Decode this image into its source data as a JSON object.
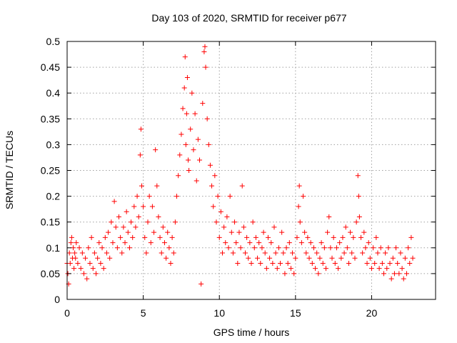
{
  "chart_data": {
    "type": "scatter",
    "title": "Day 103 of 2020, SRMTID for receiver p677",
    "xlabel": "GPS time / hours",
    "ylabel": "SRMTID / TECUs",
    "xlim": [
      0,
      24.2
    ],
    "ylim": [
      0,
      0.5
    ],
    "x_ticks": [
      0,
      5,
      10,
      15,
      20
    ],
    "x_tick_labels": [
      "0",
      "5",
      "10",
      "15",
      "20"
    ],
    "y_ticks": [
      0,
      0.05,
      0.1,
      0.15,
      0.2,
      0.25,
      0.3,
      0.35,
      0.4,
      0.45,
      0.5
    ],
    "y_tick_labels": [
      "0",
      "0.05",
      "0.1",
      "0.15",
      "0.2",
      "0.25",
      "0.3",
      "0.35",
      "0.4",
      "0.45",
      "0.5"
    ],
    "grid": true,
    "marker": "+",
    "color": "#ff0000",
    "series": [
      {
        "name": "SRMTID",
        "points": [
          [
            0.0,
            0.07
          ],
          [
            0.05,
            0.05
          ],
          [
            0.1,
            0.03
          ],
          [
            0.15,
            0.09
          ],
          [
            0.2,
            0.07
          ],
          [
            0.25,
            0.11
          ],
          [
            0.3,
            0.12
          ],
          [
            0.35,
            0.08
          ],
          [
            0.4,
            0.1
          ],
          [
            0.45,
            0.06
          ],
          [
            0.5,
            0.09
          ],
          [
            0.55,
            0.08
          ],
          [
            0.6,
            0.11
          ],
          [
            0.7,
            0.07
          ],
          [
            0.8,
            0.1
          ],
          [
            0.9,
            0.06
          ],
          [
            1.0,
            0.09
          ],
          [
            1.1,
            0.05
          ],
          [
            1.2,
            0.08
          ],
          [
            1.3,
            0.04
          ],
          [
            1.4,
            0.1
          ],
          [
            1.5,
            0.07
          ],
          [
            1.6,
            0.12
          ],
          [
            1.7,
            0.06
          ],
          [
            1.8,
            0.09
          ],
          [
            1.9,
            0.05
          ],
          [
            2.0,
            0.08
          ],
          [
            2.1,
            0.11
          ],
          [
            2.2,
            0.07
          ],
          [
            2.3,
            0.1
          ],
          [
            2.4,
            0.06
          ],
          [
            2.5,
            0.12
          ],
          [
            2.6,
            0.09
          ],
          [
            2.7,
            0.13
          ],
          [
            2.8,
            0.08
          ],
          [
            2.9,
            0.15
          ],
          [
            3.0,
            0.11
          ],
          [
            3.1,
            0.19
          ],
          [
            3.2,
            0.14
          ],
          [
            3.3,
            0.1
          ],
          [
            3.4,
            0.16
          ],
          [
            3.5,
            0.12
          ],
          [
            3.6,
            0.09
          ],
          [
            3.7,
            0.14
          ],
          [
            3.8,
            0.11
          ],
          [
            3.9,
            0.17
          ],
          [
            4.0,
            0.13
          ],
          [
            4.1,
            0.1
          ],
          [
            4.2,
            0.15
          ],
          [
            4.3,
            0.12
          ],
          [
            4.4,
            0.18
          ],
          [
            4.5,
            0.14
          ],
          [
            4.6,
            0.2
          ],
          [
            4.7,
            0.16
          ],
          [
            4.8,
            0.28
          ],
          [
            4.85,
            0.33
          ],
          [
            4.9,
            0.22
          ],
          [
            5.0,
            0.18
          ],
          [
            5.1,
            0.12
          ],
          [
            5.2,
            0.09
          ],
          [
            5.3,
            0.15
          ],
          [
            5.4,
            0.2
          ],
          [
            5.5,
            0.11
          ],
          [
            5.6,
            0.18
          ],
          [
            5.7,
            0.13
          ],
          [
            5.8,
            0.29
          ],
          [
            5.9,
            0.22
          ],
          [
            6.0,
            0.16
          ],
          [
            6.1,
            0.12
          ],
          [
            6.2,
            0.09
          ],
          [
            6.3,
            0.14
          ],
          [
            6.4,
            0.11
          ],
          [
            6.5,
            0.08
          ],
          [
            6.6,
            0.13
          ],
          [
            6.7,
            0.1
          ],
          [
            6.8,
            0.07
          ],
          [
            6.9,
            0.12
          ],
          [
            7.0,
            0.09
          ],
          [
            7.1,
            0.15
          ],
          [
            7.2,
            0.2
          ],
          [
            7.3,
            0.24
          ],
          [
            7.4,
            0.28
          ],
          [
            7.5,
            0.32
          ],
          [
            7.6,
            0.37
          ],
          [
            7.7,
            0.41
          ],
          [
            7.75,
            0.47
          ],
          [
            7.8,
            0.3
          ],
          [
            7.85,
            0.36
          ],
          [
            7.9,
            0.43
          ],
          [
            7.95,
            0.27
          ],
          [
            8.0,
            0.25
          ],
          [
            8.1,
            0.33
          ],
          [
            8.2,
            0.4
          ],
          [
            8.3,
            0.29
          ],
          [
            8.4,
            0.36
          ],
          [
            8.5,
            0.23
          ],
          [
            8.6,
            0.31
          ],
          [
            8.7,
            0.27
          ],
          [
            8.8,
            0.03
          ],
          [
            8.9,
            0.38
          ],
          [
            9.0,
            0.48
          ],
          [
            9.05,
            0.49
          ],
          [
            9.1,
            0.45
          ],
          [
            9.2,
            0.35
          ],
          [
            9.3,
            0.3
          ],
          [
            9.4,
            0.26
          ],
          [
            9.5,
            0.22
          ],
          [
            9.6,
            0.18
          ],
          [
            9.7,
            0.24
          ],
          [
            9.8,
            0.15
          ],
          [
            9.9,
            0.2
          ],
          [
            10.0,
            0.12
          ],
          [
            10.1,
            0.17
          ],
          [
            10.2,
            0.09
          ],
          [
            10.3,
            0.14
          ],
          [
            10.4,
            0.11
          ],
          [
            10.5,
            0.16
          ],
          [
            10.6,
            0.1
          ],
          [
            10.7,
            0.2
          ],
          [
            10.8,
            0.13
          ],
          [
            10.9,
            0.09
          ],
          [
            11.0,
            0.15
          ],
          [
            11.1,
            0.11
          ],
          [
            11.2,
            0.07
          ],
          [
            11.3,
            0.13
          ],
          [
            11.4,
            0.1
          ],
          [
            11.5,
            0.22
          ],
          [
            11.6,
            0.14
          ],
          [
            11.7,
            0.09
          ],
          [
            11.8,
            0.12
          ],
          [
            11.9,
            0.08
          ],
          [
            12.0,
            0.11
          ],
          [
            12.1,
            0.07
          ],
          [
            12.2,
            0.15
          ],
          [
            12.3,
            0.1
          ],
          [
            12.4,
            0.12
          ],
          [
            12.5,
            0.08
          ],
          [
            12.6,
            0.11
          ],
          [
            12.7,
            0.07
          ],
          [
            12.8,
            0.1
          ],
          [
            12.9,
            0.13
          ],
          [
            13.0,
            0.09
          ],
          [
            13.1,
            0.06
          ],
          [
            13.2,
            0.12
          ],
          [
            13.3,
            0.08
          ],
          [
            13.4,
            0.11
          ],
          [
            13.5,
            0.07
          ],
          [
            13.6,
            0.14
          ],
          [
            13.7,
            0.09
          ],
          [
            13.8,
            0.06
          ],
          [
            13.9,
            0.1
          ],
          [
            14.0,
            0.07
          ],
          [
            14.1,
            0.13
          ],
          [
            14.2,
            0.09
          ],
          [
            14.3,
            0.05
          ],
          [
            14.4,
            0.1
          ],
          [
            14.5,
            0.07
          ],
          [
            14.6,
            0.11
          ],
          [
            14.7,
            0.06
          ],
          [
            14.8,
            0.09
          ],
          [
            14.9,
            0.05
          ],
          [
            15.0,
            0.08
          ],
          [
            15.1,
            0.12
          ],
          [
            15.2,
            0.18
          ],
          [
            15.25,
            0.22
          ],
          [
            15.3,
            0.15
          ],
          [
            15.4,
            0.11
          ],
          [
            15.5,
            0.2
          ],
          [
            15.6,
            0.13
          ],
          [
            15.7,
            0.09
          ],
          [
            15.8,
            0.12
          ],
          [
            15.9,
            0.08
          ],
          [
            16.0,
            0.11
          ],
          [
            16.1,
            0.07
          ],
          [
            16.2,
            0.1
          ],
          [
            16.3,
            0.06
          ],
          [
            16.4,
            0.09
          ],
          [
            16.5,
            0.05
          ],
          [
            16.6,
            0.08
          ],
          [
            16.7,
            0.11
          ],
          [
            16.8,
            0.07
          ],
          [
            16.9,
            0.1
          ],
          [
            17.0,
            0.06
          ],
          [
            17.1,
            0.13
          ],
          [
            17.2,
            0.16
          ],
          [
            17.3,
            0.1
          ],
          [
            17.4,
            0.08
          ],
          [
            17.5,
            0.12
          ],
          [
            17.6,
            0.07
          ],
          [
            17.7,
            0.1
          ],
          [
            17.8,
            0.06
          ],
          [
            17.9,
            0.11
          ],
          [
            18.0,
            0.08
          ],
          [
            18.1,
            0.12
          ],
          [
            18.2,
            0.09
          ],
          [
            18.3,
            0.14
          ],
          [
            18.4,
            0.1
          ],
          [
            18.5,
            0.07
          ],
          [
            18.6,
            0.13
          ],
          [
            18.7,
            0.09
          ],
          [
            18.8,
            0.12
          ],
          [
            18.9,
            0.08
          ],
          [
            19.0,
            0.15
          ],
          [
            19.1,
            0.24
          ],
          [
            19.15,
            0.2
          ],
          [
            19.2,
            0.16
          ],
          [
            19.3,
            0.12
          ],
          [
            19.4,
            0.09
          ],
          [
            19.5,
            0.13
          ],
          [
            19.6,
            0.1
          ],
          [
            19.7,
            0.07
          ],
          [
            19.8,
            0.11
          ],
          [
            19.9,
            0.08
          ],
          [
            20.0,
            0.06
          ],
          [
            20.1,
            0.1
          ],
          [
            20.2,
            0.07
          ],
          [
            20.3,
            0.12
          ],
          [
            20.4,
            0.09
          ],
          [
            20.5,
            0.06
          ],
          [
            20.6,
            0.1
          ],
          [
            20.7,
            0.07
          ],
          [
            20.8,
            0.05
          ],
          [
            20.9,
            0.09
          ],
          [
            21.0,
            0.06
          ],
          [
            21.1,
            0.1
          ],
          [
            21.2,
            0.07
          ],
          [
            21.3,
            0.04
          ],
          [
            21.4,
            0.08
          ],
          [
            21.5,
            0.05
          ],
          [
            21.6,
            0.1
          ],
          [
            21.7,
            0.07
          ],
          [
            21.8,
            0.05
          ],
          [
            21.9,
            0.09
          ],
          [
            22.0,
            0.06
          ],
          [
            22.1,
            0.04
          ],
          [
            22.2,
            0.08
          ],
          [
            22.3,
            0.05
          ],
          [
            22.4,
            0.1
          ],
          [
            22.5,
            0.07
          ],
          [
            22.6,
            0.12
          ],
          [
            22.7,
            0.08
          ]
        ]
      }
    ]
  }
}
